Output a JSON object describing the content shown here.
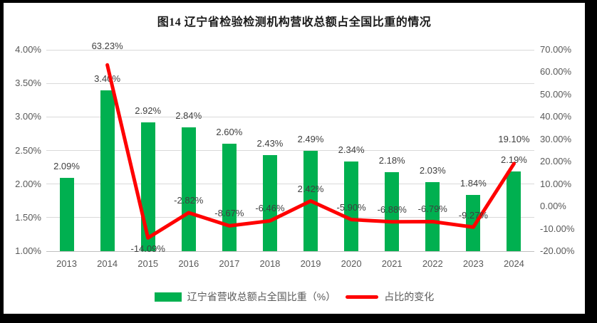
{
  "title": "图14 辽宁省检验检测机构营收总额占全国比重的情况",
  "legend": [
    {
      "label": "辽宁省营收总额占全国比重（%）",
      "type": "bar",
      "color": "#00b050"
    },
    {
      "label": "占比的变化",
      "type": "line",
      "color": "#ff0000"
    }
  ],
  "chart_data": {
    "type": "bar+line combo",
    "title": "图14 辽宁省检验检测机构营收总额占全国比重的情况",
    "categories": [
      "2013",
      "2014",
      "2015",
      "2016",
      "2017",
      "2018",
      "2019",
      "2020",
      "2021",
      "2022",
      "2023",
      "2024"
    ],
    "series": [
      {
        "name": "辽宁省营收总额占全国比重（%）",
        "type": "bar",
        "axis": "left",
        "color": "#00b050",
        "values": [
          2.09,
          3.4,
          2.92,
          2.84,
          2.6,
          2.43,
          2.49,
          2.34,
          2.18,
          2.03,
          1.84,
          2.19
        ],
        "labels": [
          "2.09%",
          "3.40%",
          "2.92%",
          "2.84%",
          "2.60%",
          "2.43%",
          "2.49%",
          "2.34%",
          "2.18%",
          "2.03%",
          "1.84%",
          "2.19%"
        ]
      },
      {
        "name": "占比的变化",
        "type": "line",
        "axis": "right",
        "color": "#ff0000",
        "values": [
          null,
          63.23,
          -14.09,
          -2.82,
          -8.67,
          -6.46,
          2.42,
          -5.9,
          -6.88,
          -6.79,
          -9.27,
          19.1
        ],
        "labels": [
          null,
          "63.23%",
          "-14.09%",
          "-2.82%",
          "-8.67%",
          "-6.46%",
          "2.42%",
          "-5.90%",
          "-6.88%",
          "-6.79%",
          "-9.27%",
          "19.10%"
        ],
        "label_offsets": [
          null,
          -34,
          8,
          -25,
          -25,
          -25,
          -25,
          -25,
          -25,
          -25,
          -24,
          -42
        ]
      }
    ],
    "left_axis": {
      "min": 1.0,
      "max": 4.0,
      "step": 0.5,
      "ticks": [
        "1.00%",
        "1.50%",
        "2.00%",
        "2.50%",
        "3.00%",
        "3.50%",
        "4.00%"
      ]
    },
    "right_axis": {
      "min": -20,
      "max": 70,
      "step": 10,
      "ticks": [
        "-20.00%",
        "-10.00%",
        "0.00%",
        "10.00%",
        "20.00%",
        "30.00%",
        "40.00%",
        "50.00%",
        "60.00%",
        "70.00%"
      ]
    },
    "grid": true,
    "legend_position": "bottom"
  }
}
